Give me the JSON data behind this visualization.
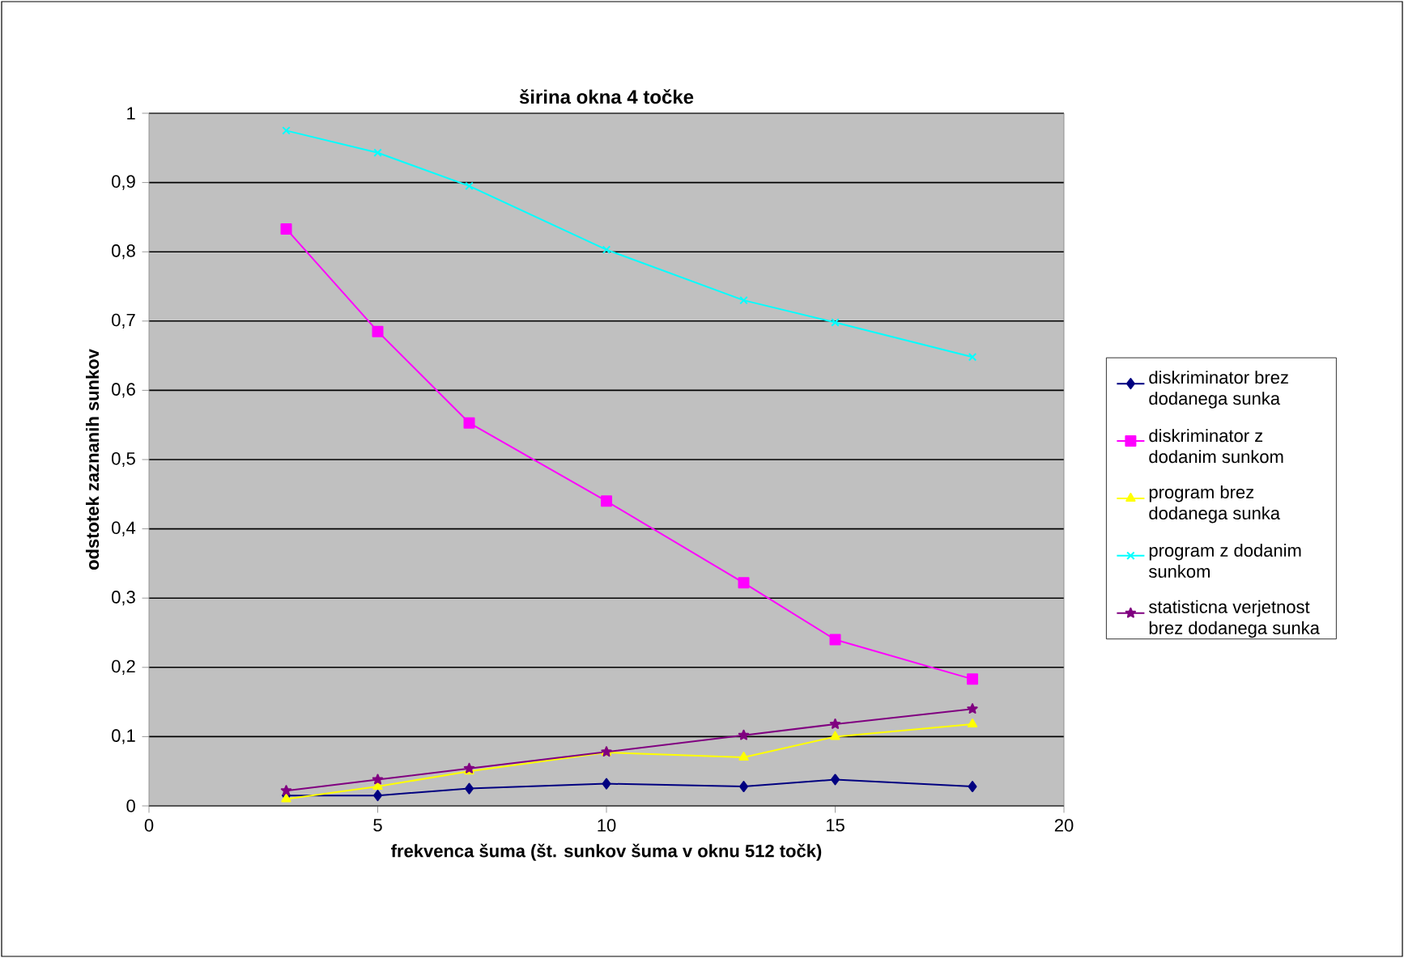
{
  "chart_data": {
    "type": "line",
    "title": "širina okna 4 točke",
    "xlabel": "frekvenca šuma (št. sunkov šuma v oknu 512 točk)",
    "ylabel": "odstotek zaznanih sunkov",
    "x": [
      3,
      5,
      7,
      10,
      13,
      15,
      18
    ],
    "series": [
      {
        "name": "diskriminator brez dodanega sunka",
        "color": "#000080",
        "marker": "diamond",
        "values": [
          0.015,
          0.015,
          0.025,
          0.032,
          0.028,
          0.038,
          0.028
        ]
      },
      {
        "name": "diskriminator z dodanim sunkom",
        "color": "#ff00ff",
        "marker": "square",
        "values": [
          0.833,
          0.685,
          0.553,
          0.44,
          0.322,
          0.24,
          0.183
        ]
      },
      {
        "name": "program brez dodanega sunka",
        "color": "#ffff00",
        "marker": "triangle",
        "values": [
          0.01,
          0.028,
          0.05,
          0.077,
          0.07,
          0.1,
          0.118
        ]
      },
      {
        "name": "program z dodanim sunkom",
        "color": "#00ffff",
        "marker": "cross",
        "values": [
          0.975,
          0.943,
          0.895,
          0.803,
          0.73,
          0.698,
          0.648
        ]
      },
      {
        "name": "statisticna verjetnost brez dodanega sunka",
        "color": "#800080",
        "marker": "star",
        "values": [
          0.022,
          0.038,
          0.054,
          0.078,
          0.102,
          0.118,
          0.14
        ]
      }
    ],
    "xlim": [
      0,
      20
    ],
    "xticks": [
      0,
      5,
      10,
      15,
      20
    ],
    "ylim": [
      0,
      1
    ],
    "yticks": [
      0,
      {
        "value": 0.1,
        "label": "0,1"
      },
      {
        "value": 0.2,
        "label": "0,2"
      },
      {
        "value": 0.3,
        "label": "0,3"
      },
      {
        "value": 0.4,
        "label": "0,4"
      },
      {
        "value": 0.5,
        "label": "0,5"
      },
      {
        "value": 0.6,
        "label": "0,6"
      },
      {
        "value": 0.7,
        "label": "0,7"
      },
      {
        "value": 0.8,
        "label": "0,8"
      },
      {
        "value": 0.9,
        "label": "0,9"
      },
      1
    ],
    "grid": "y",
    "legend": "right",
    "line_style": "solid"
  }
}
